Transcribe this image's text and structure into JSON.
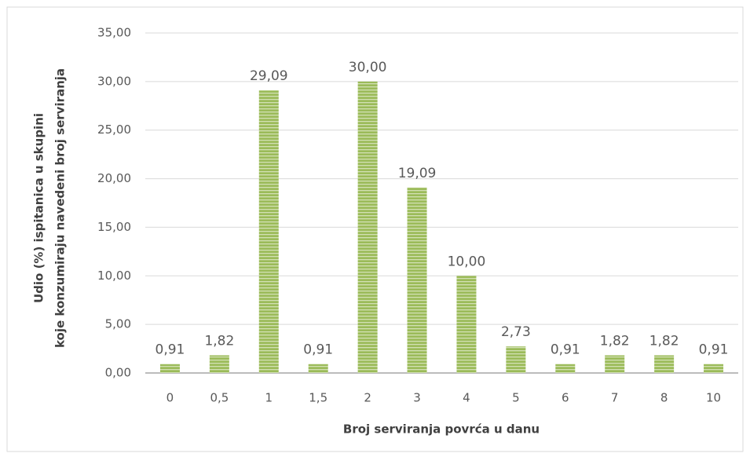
{
  "chart_data": {
    "type": "bar",
    "xlabel": "Broj serviranja povrća u danu",
    "ylabel": [
      "Udio (%)  ispitanica u skupini",
      "koje konzumiraju navedeni broj serviranja"
    ],
    "categories": [
      "0",
      "0,5",
      "1",
      "1,5",
      "2",
      "3",
      "4",
      "5",
      "6",
      "7",
      "8",
      "10"
    ],
    "values": [
      0.91,
      1.82,
      29.09,
      0.91,
      30,
      19.09,
      10,
      2.73,
      0.91,
      1.82,
      1.82,
      0.91
    ],
    "value_labels": [
      "0,91",
      "1,82",
      "29,09",
      "0,91",
      "30,00",
      "19,09",
      "10,00",
      "2,73",
      "0,91",
      "1,82",
      "1,82",
      "0,91"
    ],
    "color": "#9bbb59",
    "ylim": [
      0,
      35
    ],
    "yticks": [
      {
        "value": 0,
        "label": "0,00"
      },
      {
        "value": 5,
        "label": "5,00"
      },
      {
        "value": 10,
        "label": "10,00"
      },
      {
        "value": 15,
        "label": "15,00"
      },
      {
        "value": 20,
        "label": "20,00"
      },
      {
        "value": 25,
        "label": "25,00"
      },
      {
        "value": 30,
        "label": "30,00"
      },
      {
        "value": 35,
        "label": "35,00"
      }
    ],
    "grid": true
  }
}
